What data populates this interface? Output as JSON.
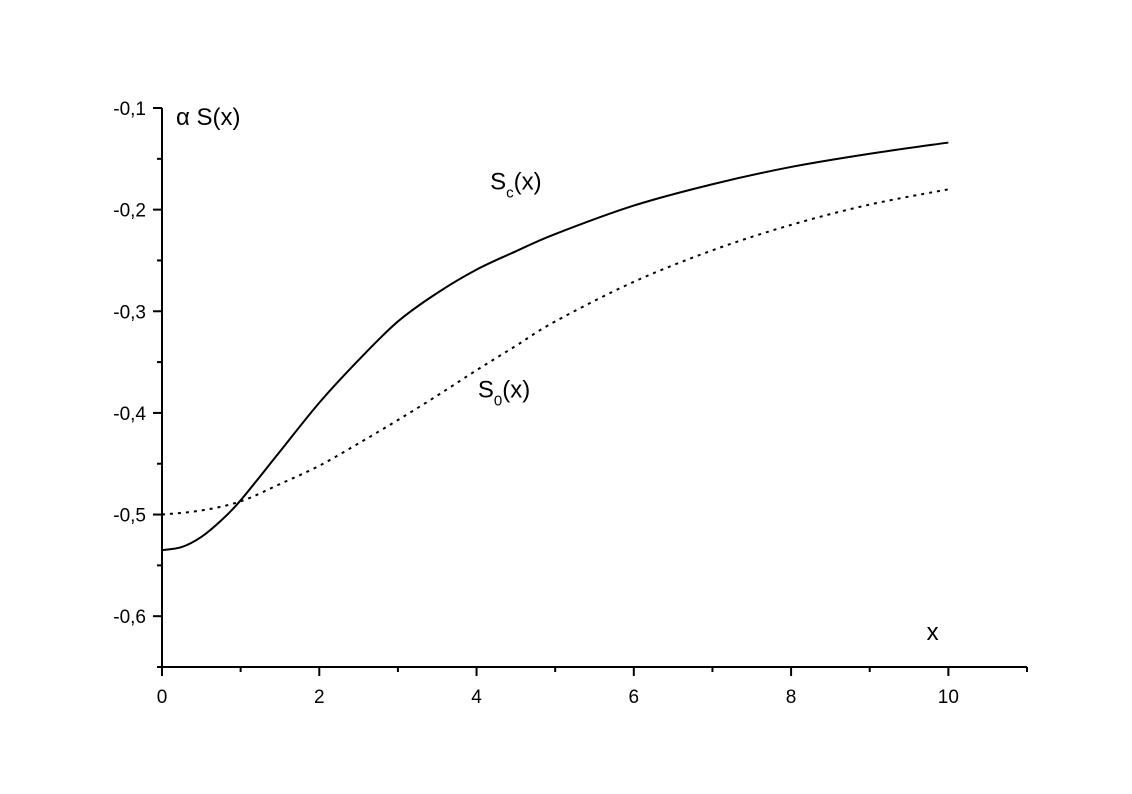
{
  "chart_data": {
    "type": "line",
    "title": "",
    "xlabel": "x",
    "ylabel": "α S(x)",
    "xlim": [
      0,
      11
    ],
    "ylim": [
      -0.65,
      -0.1
    ],
    "x_ticks": [
      0,
      2,
      4,
      6,
      8,
      10
    ],
    "x_tick_labels": [
      "0",
      "2",
      "4",
      "6",
      "8",
      "10"
    ],
    "y_ticks": [
      -0.1,
      -0.2,
      -0.3,
      -0.4,
      -0.5,
      -0.6
    ],
    "y_tick_labels": [
      "-0,1",
      "-0,2",
      "-0,3",
      "-0,4",
      "-0,5",
      "-0,6"
    ],
    "grid": false,
    "legend": "none",
    "series": [
      {
        "name": "Sc(x)",
        "label_main": "S",
        "label_sub": "c",
        "label_tail": "(x)",
        "style": "solid",
        "color": "#000000",
        "x": [
          0,
          0.25,
          0.5,
          0.75,
          1,
          1.5,
          2,
          2.5,
          3,
          3.5,
          4,
          4.5,
          5,
          6,
          7,
          8,
          9,
          10
        ],
        "y": [
          -0.535,
          -0.532,
          -0.522,
          -0.506,
          -0.486,
          -0.438,
          -0.39,
          -0.348,
          -0.31,
          -0.282,
          -0.259,
          -0.241,
          -0.224,
          -0.196,
          -0.175,
          -0.158,
          -0.145,
          -0.134
        ]
      },
      {
        "name": "S0(x)",
        "label_main": "S",
        "label_sub": "0",
        "label_tail": "(x)",
        "style": "dotted",
        "color": "#000000",
        "x": [
          0,
          0.5,
          1,
          1.5,
          2,
          2.5,
          3,
          3.5,
          4,
          4.5,
          5,
          6,
          7,
          8,
          9,
          10
        ],
        "y": [
          -0.5,
          -0.496,
          -0.487,
          -0.47,
          -0.452,
          -0.43,
          -0.407,
          -0.383,
          -0.358,
          -0.334,
          -0.31,
          -0.271,
          -0.24,
          -0.215,
          -0.195,
          -0.18
        ]
      }
    ],
    "annotations": [
      {
        "series_index": 0,
        "x": 4.5,
        "y": -0.18
      },
      {
        "series_index": 1,
        "x": 4.35,
        "y": -0.385
      }
    ]
  }
}
